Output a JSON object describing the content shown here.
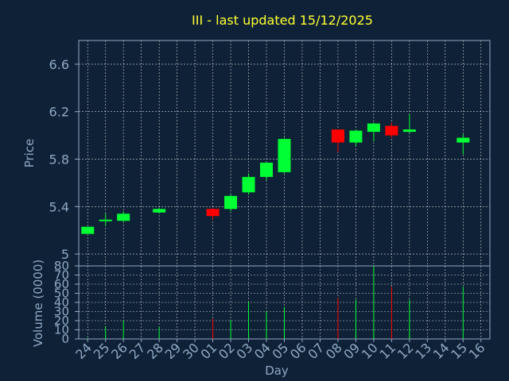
{
  "chart_data": {
    "type": "candlestick",
    "title": "III - last updated 15/12/2025",
    "xlabel": "Day",
    "price_ylabel": "Price",
    "volume_ylabel": "Volume (0000)",
    "categories": [
      "24",
      "25",
      "26",
      "27",
      "28",
      "29",
      "30",
      "01",
      "02",
      "03",
      "04",
      "05",
      "06",
      "07",
      "08",
      "09",
      "10",
      "11",
      "12",
      "13",
      "14",
      "15",
      "16"
    ],
    "price_ylim": [
      4.9,
      6.8
    ],
    "price_ticks": [
      5,
      5.4,
      5.8,
      6.2,
      6.6
    ],
    "price_tick_labels": [
      "5",
      "5.4",
      "5.8",
      "6.2",
      "6.6"
    ],
    "volume_ylim": [
      0,
      80
    ],
    "volume_ticks": [
      0,
      10,
      20,
      30,
      40,
      50,
      60,
      70,
      80
    ],
    "volume_tick_labels": [
      "0",
      "10",
      "20",
      "30",
      "40",
      "50",
      "60",
      "70",
      "80"
    ],
    "grid": true,
    "candles": [
      {
        "x": 0,
        "open": 5.17,
        "close": 5.23,
        "high": 5.23,
        "low": 5.17,
        "up": true
      },
      {
        "x": 1,
        "open": 5.28,
        "close": 5.29,
        "high": 5.34,
        "low": 5.24,
        "up": true
      },
      {
        "x": 2,
        "open": 5.28,
        "close": 5.34,
        "high": 5.36,
        "low": 5.27,
        "up": true
      },
      {
        "x": 4,
        "open": 5.35,
        "close": 5.38,
        "high": 5.39,
        "low": 5.34,
        "up": true
      },
      {
        "x": 7,
        "open": 5.38,
        "close": 5.32,
        "high": 5.39,
        "low": 5.29,
        "up": false
      },
      {
        "x": 8,
        "open": 5.38,
        "close": 5.49,
        "high": 5.5,
        "low": 5.36,
        "up": true
      },
      {
        "x": 9,
        "open": 5.52,
        "close": 5.65,
        "high": 5.68,
        "low": 5.5,
        "up": true
      },
      {
        "x": 10,
        "open": 5.65,
        "close": 5.77,
        "high": 5.78,
        "low": 5.62,
        "up": true
      },
      {
        "x": 11,
        "open": 5.69,
        "close": 5.97,
        "high": 5.98,
        "low": 5.68,
        "up": true
      },
      {
        "x": 14,
        "open": 6.05,
        "close": 5.94,
        "high": 6.05,
        "low": 5.86,
        "up": false
      },
      {
        "x": 15,
        "open": 5.94,
        "close": 6.04,
        "high": 6.05,
        "low": 5.91,
        "up": true
      },
      {
        "x": 16,
        "open": 6.03,
        "close": 6.1,
        "high": 6.11,
        "low": 5.95,
        "up": true
      },
      {
        "x": 17,
        "open": 6.08,
        "close": 6.0,
        "high": 6.11,
        "low": 5.98,
        "up": false
      },
      {
        "x": 18,
        "open": 6.03,
        "close": 6.05,
        "high": 6.18,
        "low": 6.02,
        "up": true
      },
      {
        "x": 21,
        "open": 5.94,
        "close": 5.98,
        "high": 6.01,
        "low": 5.84,
        "up": true
      }
    ],
    "volume": [
      {
        "x": 0,
        "value": 1,
        "up": true
      },
      {
        "x": 1,
        "value": 14,
        "up": true
      },
      {
        "x": 2,
        "value": 20,
        "up": true
      },
      {
        "x": 4,
        "value": 13,
        "up": true
      },
      {
        "x": 7,
        "value": 22,
        "up": false
      },
      {
        "x": 8,
        "value": 21,
        "up": true
      },
      {
        "x": 9,
        "value": 41,
        "up": true
      },
      {
        "x": 10,
        "value": 30,
        "up": true
      },
      {
        "x": 11,
        "value": 35,
        "up": true
      },
      {
        "x": 14,
        "value": 45,
        "up": false
      },
      {
        "x": 15,
        "value": 43,
        "up": true
      },
      {
        "x": 16,
        "value": 80,
        "up": true
      },
      {
        "x": 17,
        "value": 57,
        "up": false
      },
      {
        "x": 18,
        "value": 43,
        "up": true
      },
      {
        "x": 21,
        "value": 57,
        "up": true
      }
    ],
    "colors": {
      "background": "#0f2136",
      "up": "#00ff33",
      "down": "#ff0000",
      "axis": "#8fa9c6",
      "grid": "#ffffff",
      "title": "#ffff33"
    }
  }
}
